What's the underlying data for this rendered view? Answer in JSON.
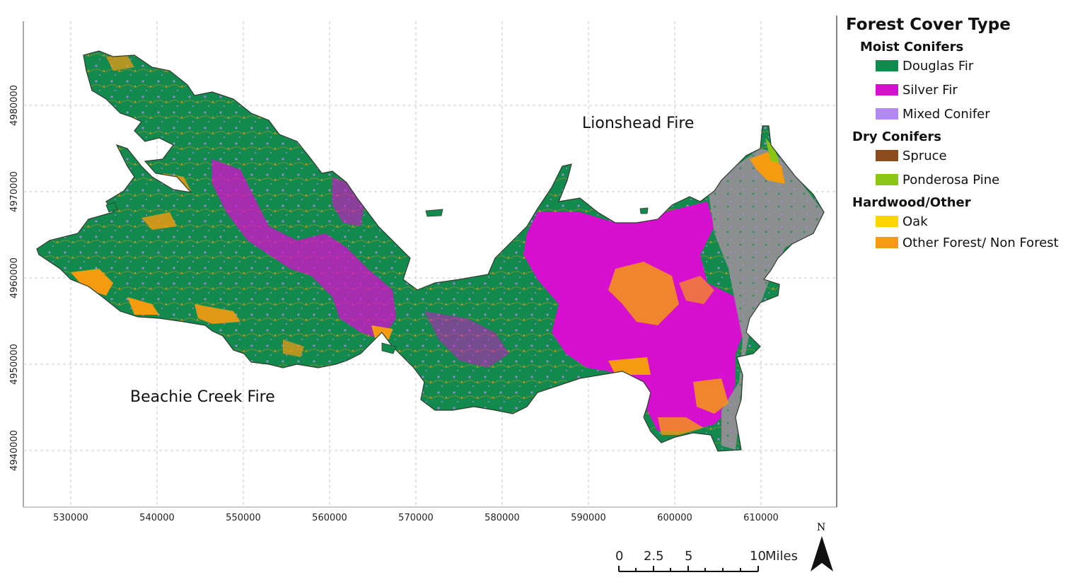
{
  "colors": {
    "douglas": "#128a4e",
    "silver": "#d70fcf",
    "mixed": "#b388f0",
    "spruce": "#8b4b1b",
    "ponderosa": "#8cc614",
    "oak": "#ffd500",
    "other": "#f69a10",
    "gray": "#8c8f8f"
  },
  "map": {
    "x_ticks": [
      "530000",
      "540000",
      "550000",
      "560000",
      "570000",
      "580000",
      "590000",
      "600000",
      "610000"
    ],
    "y_ticks": [
      "4980000",
      "4970000",
      "4960000",
      "4950000",
      "4940000"
    ],
    "labels": {
      "lionshead": "Lionshead Fire",
      "beachie": "Beachie Creek Fire"
    }
  },
  "legend": {
    "title": "Forest Cover Type",
    "groups": [
      {
        "name": "Moist Conifers",
        "items": [
          {
            "label": "Douglas Fir",
            "color": "#128a4e"
          },
          {
            "label": "Silver Fir",
            "color": "#d70fcf"
          },
          {
            "label": "Mixed Conifer",
            "color": "#b388f0"
          }
        ]
      },
      {
        "name": "Dry Conifers",
        "items": [
          {
            "label": "Spruce",
            "color": "#8b4b1b"
          },
          {
            "label": "Ponderosa Pine",
            "color": "#8cc614"
          }
        ]
      },
      {
        "name": "Hardwood/Other",
        "items": [
          {
            "label": "Oak",
            "color": "#ffd500"
          },
          {
            "label": "Other Forest/ Non Forest",
            "color": "#f69a10"
          }
        ]
      }
    ]
  },
  "scale_bar": {
    "labels": [
      "0",
      "2.5",
      "5",
      "10"
    ],
    "units": "Miles"
  },
  "north_arrow": {
    "label": "N",
    "icon": "north-arrow-icon"
  }
}
